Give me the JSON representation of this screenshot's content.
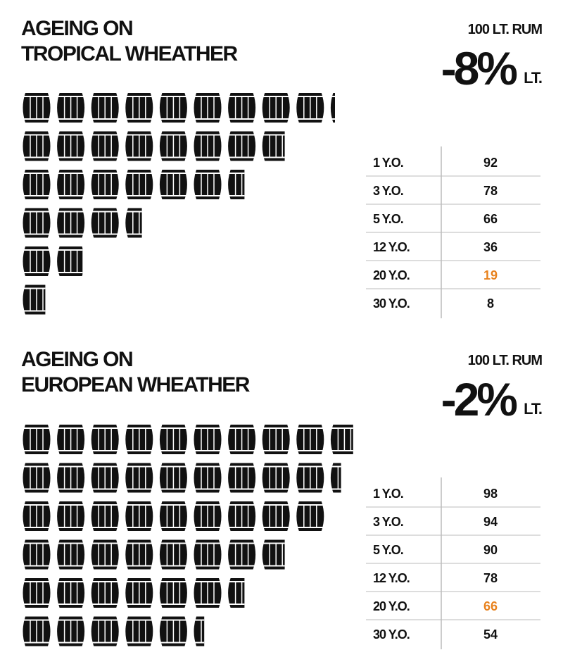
{
  "sections": [
    {
      "title": [
        "AGEING ON",
        "TROPICAL WHEATHER"
      ],
      "volume": "100 LT. RUM",
      "change": "-8%",
      "unit": "LT.",
      "highlight_row": 4,
      "highlight_color": "#e8821e",
      "rows": [
        [
          "1 Y.O.",
          92
        ],
        [
          "3 Y.O.",
          78
        ],
        [
          "5 Y.O.",
          66
        ],
        [
          "12 Y.O.",
          36
        ],
        [
          "20 Y.O.",
          19
        ],
        [
          "30 Y.O.",
          8
        ]
      ]
    },
    {
      "title": [
        "AGEING ON",
        "EUROPEAN WHEATHER"
      ],
      "volume": "100 LT. RUM",
      "change": "-2%",
      "unit": "LT.",
      "highlight_row": 4,
      "highlight_color": "#e8821e",
      "rows": [
        [
          "1 Y.O.",
          98
        ],
        [
          "3 Y.O.",
          94
        ],
        [
          "5 Y.O.",
          90
        ],
        [
          "12 Y.O.",
          78
        ],
        [
          "20 Y.O.",
          66
        ],
        [
          "30 Y.O.",
          54
        ]
      ]
    }
  ]
}
